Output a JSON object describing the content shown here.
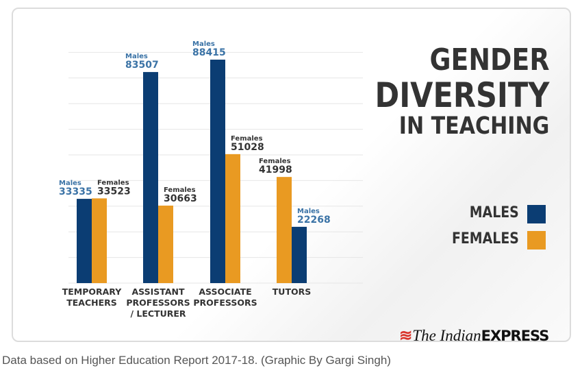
{
  "chart_data": {
    "type": "bar",
    "title": "GENDER DIVERSITY IN TEACHING",
    "title_lines": [
      "GENDER",
      "DIVERSITY",
      "IN TEACHING"
    ],
    "categories": [
      [
        "TEMPORARY",
        "TEACHERS"
      ],
      [
        "ASSISTANT",
        "PROFESSORS",
        "/ LECTURER"
      ],
      [
        "ASSOCIATE",
        "PROFESSORS"
      ],
      [
        "TUTORS"
      ]
    ],
    "series": [
      {
        "name": "MALES",
        "label": "Males",
        "color": "#0b3d73",
        "label_color": "#3b73a6",
        "values": [
          33335,
          83507,
          88415,
          22268
        ]
      },
      {
        "name": "FEMALES",
        "label": "Females",
        "color": "#e99a22",
        "label_color": "#333333",
        "values": [
          33523,
          30663,
          51028,
          41998
        ]
      }
    ],
    "bar_order": [
      [
        "MALES",
        "FEMALES"
      ],
      [
        "MALES",
        "FEMALES"
      ],
      [
        "MALES",
        "FEMALES"
      ],
      [
        "FEMALES",
        "MALES"
      ]
    ],
    "ylim": [
      0,
      88415
    ],
    "grid": true,
    "legend": "right",
    "xlabel": "",
    "ylabel": ""
  },
  "branding": {
    "logo_italic": "The Indian",
    "logo_bold": "EXPRESS"
  },
  "caption": "Data based on Higher Education Report 2017-18. (Graphic By Gargi Singh)"
}
